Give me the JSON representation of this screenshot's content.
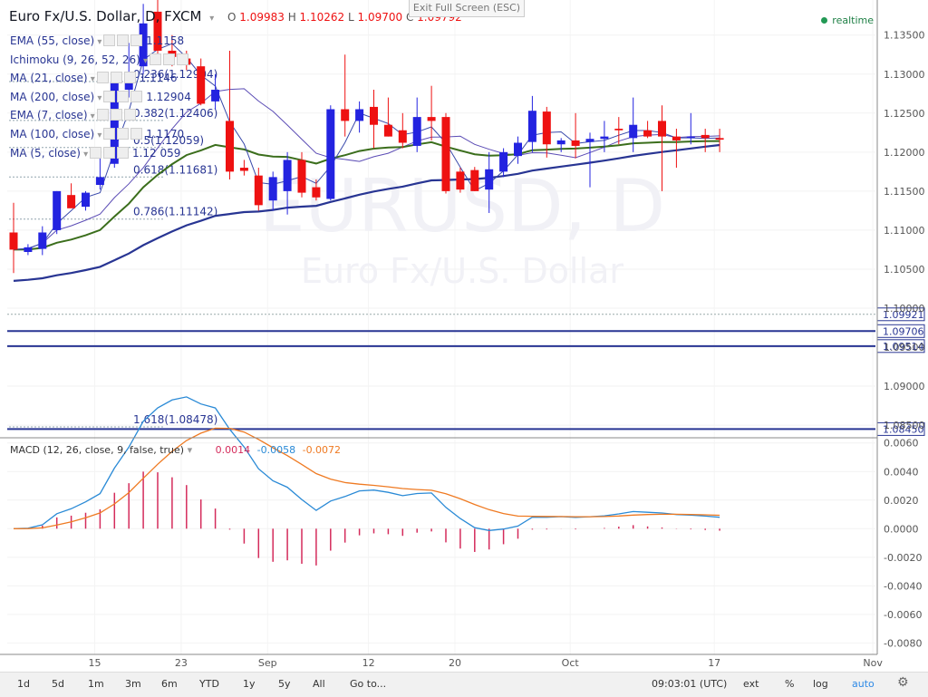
{
  "header": {
    "title": "Euro Fx/U.S. Dollar, D, FXCM",
    "ohlc": {
      "o": "1.09983",
      "h": "1.10262",
      "l": "1.09700",
      "c": "1.09792"
    },
    "realtime": "realtime",
    "exit_fullscreen": "Exit Full Screen (ESC)",
    "watermark_symbol": "EURUSD, D",
    "watermark_name": "Euro Fx/U.S. Dollar"
  },
  "indicators": [
    {
      "label": "EMA (55, close)",
      "value": "1.1158"
    },
    {
      "label": "Ichimoku (9, 26, 52, 26)",
      "value": ""
    },
    {
      "label": "MA (21, close)",
      "value": "1.1146"
    },
    {
      "label": "MA (200, close)",
      "value": "1.12904"
    },
    {
      "label": "EMA (7, close)",
      "value": ""
    },
    {
      "label": "MA (100, close)",
      "value": "1.1170"
    },
    {
      "label": "MA (5, close)",
      "value": "1.12 059"
    }
  ],
  "fib_levels": [
    {
      "label": "0.236(1.12904)",
      "value": 1.12904
    },
    {
      "label": "0.382(1.12406)",
      "value": 1.12406
    },
    {
      "label": "0.5(1.12059)",
      "value": 1.12059
    },
    {
      "label": "0.618(1.11681)",
      "value": 1.11681
    },
    {
      "label": "0.786(1.11142)",
      "value": 1.11142
    },
    {
      "label": "1.618(1.08478)",
      "value": 1.08478
    }
  ],
  "chart_data": {
    "type": "candlestick",
    "title": "Euro Fx/U.S. Dollar, D, FXCM",
    "y_ticks": [
      "1.13500",
      "1.13000",
      "1.12500",
      "1.12000",
      "1.11500",
      "1.11000",
      "1.10500",
      "1.10000",
      "1.09500",
      "1.09000",
      "1.08500"
    ],
    "ylim": [
      1.0835,
      1.1395
    ],
    "x_labels": [
      {
        "label": "15",
        "i": 5
      },
      {
        "label": "23",
        "i": 11
      },
      {
        "label": "Sep",
        "i": 17
      },
      {
        "label": "12",
        "i": 24
      },
      {
        "label": "20",
        "i": 30
      },
      {
        "label": "Oct",
        "i": 38
      },
      {
        "label": "17",
        "i": 48
      },
      {
        "label": "Nov",
        "i": 59
      }
    ],
    "candles": [
      {
        "o": 1.1097,
        "h": 1.1135,
        "l": 1.1045,
        "c": 1.1075
      },
      {
        "o": 1.1072,
        "h": 1.1082,
        "l": 1.1068,
        "c": 1.1078
      },
      {
        "o": 1.1076,
        "h": 1.1105,
        "l": 1.1068,
        "c": 1.1097
      },
      {
        "o": 1.11,
        "h": 1.115,
        "l": 1.1095,
        "c": 1.115
      },
      {
        "o": 1.1145,
        "h": 1.116,
        "l": 1.113,
        "c": 1.1128
      },
      {
        "o": 1.113,
        "h": 1.115,
        "l": 1.1125,
        "c": 1.1148
      },
      {
        "o": 1.1158,
        "h": 1.12,
        "l": 1.1152,
        "c": 1.1168
      },
      {
        "o": 1.1185,
        "h": 1.1292,
        "l": 1.118,
        "c": 1.129
      },
      {
        "o": 1.128,
        "h": 1.134,
        "l": 1.127,
        "c": 1.13
      },
      {
        "o": 1.131,
        "h": 1.139,
        "l": 1.13,
        "c": 1.1365
      },
      {
        "o": 1.138,
        "h": 1.1395,
        "l": 1.132,
        "c": 1.133
      },
      {
        "o": 1.133,
        "h": 1.135,
        "l": 1.131,
        "c": 1.1322
      },
      {
        "o": 1.132,
        "h": 1.133,
        "l": 1.1305,
        "c": 1.1312
      },
      {
        "o": 1.131,
        "h": 1.132,
        "l": 1.126,
        "c": 1.1262
      },
      {
        "o": 1.1265,
        "h": 1.13,
        "l": 1.1255,
        "c": 1.128
      },
      {
        "o": 1.124,
        "h": 1.133,
        "l": 1.1165,
        "c": 1.1175
      },
      {
        "o": 1.118,
        "h": 1.119,
        "l": 1.117,
        "c": 1.1176
      },
      {
        "o": 1.117,
        "h": 1.118,
        "l": 1.1125,
        "c": 1.1132
      },
      {
        "o": 1.1138,
        "h": 1.1175,
        "l": 1.1125,
        "c": 1.1168
      },
      {
        "o": 1.115,
        "h": 1.12,
        "l": 1.112,
        "c": 1.119
      },
      {
        "o": 1.119,
        "h": 1.12,
        "l": 1.1142,
        "c": 1.1148
      },
      {
        "o": 1.1155,
        "h": 1.1165,
        "l": 1.1138,
        "c": 1.1142
      },
      {
        "o": 1.114,
        "h": 1.126,
        "l": 1.1138,
        "c": 1.1255
      },
      {
        "o": 1.1255,
        "h": 1.1325,
        "l": 1.122,
        "c": 1.124
      },
      {
        "o": 1.124,
        "h": 1.1265,
        "l": 1.1225,
        "c": 1.1255
      },
      {
        "o": 1.1258,
        "h": 1.128,
        "l": 1.1205,
        "c": 1.1235
      },
      {
        "o": 1.1235,
        "h": 1.127,
        "l": 1.122,
        "c": 1.122
      },
      {
        "o": 1.1228,
        "h": 1.125,
        "l": 1.1205,
        "c": 1.1212
      },
      {
        "o": 1.1208,
        "h": 1.127,
        "l": 1.12,
        "c": 1.1245
      },
      {
        "o": 1.1245,
        "h": 1.1285,
        "l": 1.1215,
        "c": 1.124
      },
      {
        "o": 1.1245,
        "h": 1.125,
        "l": 1.1147,
        "c": 1.115
      },
      {
        "o": 1.1175,
        "h": 1.118,
        "l": 1.1148,
        "c": 1.1152
      },
      {
        "o": 1.1177,
        "h": 1.1181,
        "l": 1.115,
        "c": 1.115
      },
      {
        "o": 1.1152,
        "h": 1.12,
        "l": 1.1122,
        "c": 1.1178
      },
      {
        "o": 1.1175,
        "h": 1.1205,
        "l": 1.1168,
        "c": 1.12
      },
      {
        "o": 1.1195,
        "h": 1.122,
        "l": 1.1185,
        "c": 1.1212
      },
      {
        "o": 1.1213,
        "h": 1.1272,
        "l": 1.12,
        "c": 1.1253
      },
      {
        "o": 1.1252,
        "h": 1.1258,
        "l": 1.1193,
        "c": 1.121
      },
      {
        "o": 1.121,
        "h": 1.1218,
        "l": 1.12,
        "c": 1.1215
      },
      {
        "o": 1.1215,
        "h": 1.125,
        "l": 1.1192,
        "c": 1.1208
      },
      {
        "o": 1.1213,
        "h": 1.1225,
        "l": 1.1155,
        "c": 1.1217
      },
      {
        "o": 1.1217,
        "h": 1.124,
        "l": 1.12,
        "c": 1.122
      },
      {
        "o": 1.123,
        "h": 1.1245,
        "l": 1.121,
        "c": 1.1228
      },
      {
        "o": 1.1218,
        "h": 1.127,
        "l": 1.12,
        "c": 1.1235
      },
      {
        "o": 1.1228,
        "h": 1.124,
        "l": 1.1218,
        "c": 1.122
      },
      {
        "o": 1.124,
        "h": 1.126,
        "l": 1.115,
        "c": 1.122
      },
      {
        "o": 1.122,
        "h": 1.123,
        "l": 1.118,
        "c": 1.1215
      },
      {
        "o": 1.122,
        "h": 1.125,
        "l": 1.121,
        "c": 1.122
      },
      {
        "o": 1.1222,
        "h": 1.123,
        "l": 1.12,
        "c": 1.1218
      },
      {
        "o": 1.1218,
        "h": 1.123,
        "l": 1.12,
        "c": 1.1216
      }
    ],
    "price_labels": [
      {
        "label": "1.09921",
        "value": 1.09921,
        "color": "#283593"
      },
      {
        "label": "1.09706",
        "value": 1.09706,
        "color": "#283593"
      },
      {
        "label": "1.09514",
        "value": 1.09514,
        "color": "#283593"
      },
      {
        "label": "1.08450",
        "value": 1.0845,
        "color": "#283593"
      }
    ],
    "macd": {
      "label": "MACD (12, 26, close, 9, false, true)",
      "values": [
        "0.0014",
        "-0.0058",
        "-0.0072"
      ],
      "y_ticks": [
        "0.0060",
        "0.0040",
        "0.0020",
        "0.0000",
        "-0.0020",
        "-0.0040",
        "-0.0060",
        "-0.0080"
      ],
      "ylim": [
        -0.0088,
        0.0063
      ]
    }
  },
  "toolbar": {
    "ranges": [
      "1d",
      "5d",
      "1m",
      "3m",
      "6m",
      "YTD",
      "1y",
      "5y",
      "All"
    ],
    "goto": "Go to...",
    "time": "09:03:01 (UTC)",
    "ext": "ext",
    "pct": "%",
    "log": "log",
    "auto": "auto"
  },
  "colors": {
    "up": "#2323e0",
    "down": "#ee1111",
    "macd": "#2a8ad6",
    "signal": "#ef7a22",
    "hist": "#d42b5b",
    "ema55": "#3b6e1c"
  }
}
